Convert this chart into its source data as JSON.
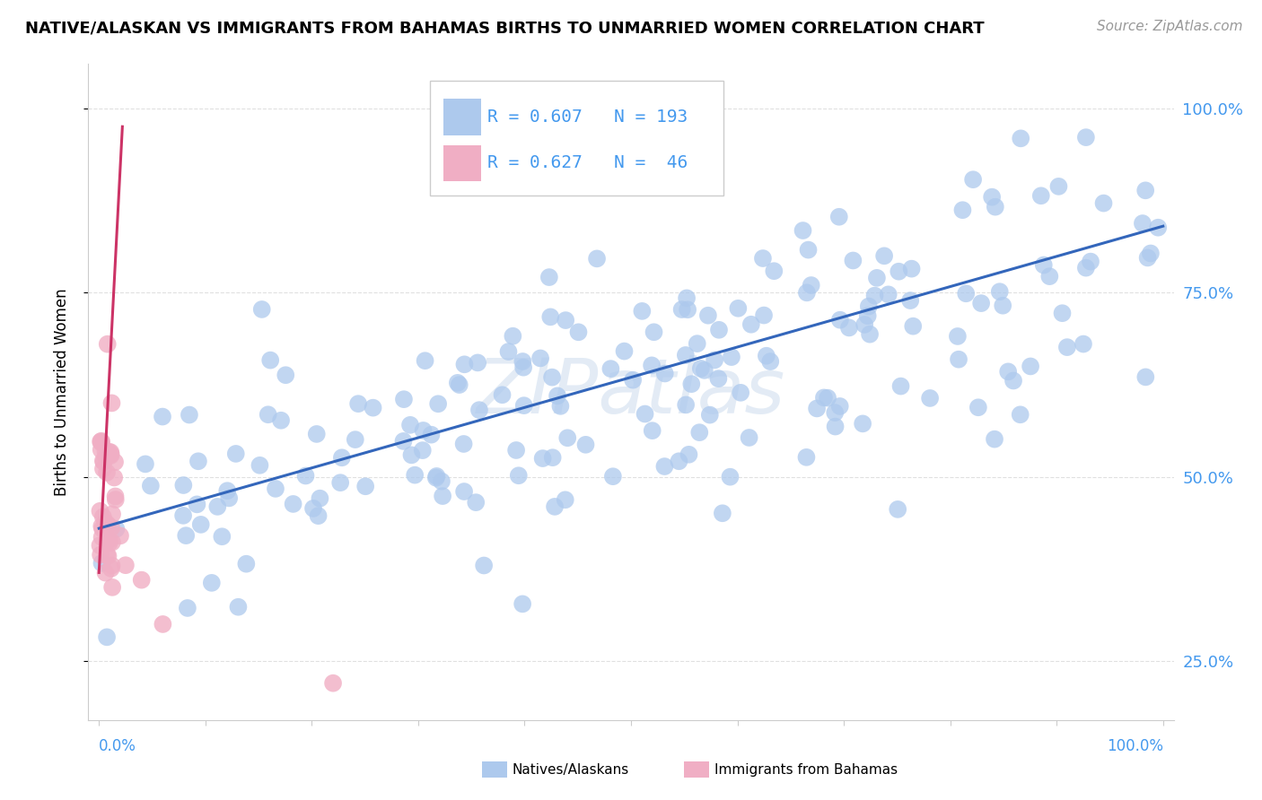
{
  "title": "NATIVE/ALASKAN VS IMMIGRANTS FROM BAHAMAS BIRTHS TO UNMARRIED WOMEN CORRELATION CHART",
  "source": "Source: ZipAtlas.com",
  "ylabel": "Births to Unmarried Women",
  "blue_R": 0.607,
  "blue_N": 193,
  "pink_R": 0.627,
  "pink_N": 46,
  "blue_color": "#adc9ed",
  "blue_edge_color": "#adc9ed",
  "pink_color": "#f0aec4",
  "pink_edge_color": "#f0aec4",
  "blue_line_color": "#3366bb",
  "pink_line_color": "#cc3366",
  "legend_blue_label": "Natives/Alaskans",
  "legend_pink_label": "Immigrants from Bahamas",
  "watermark": "ZIPatlas",
  "tick_color": "#4499ee",
  "grid_color": "#e0e0e0",
  "axis_color": "#cccccc",
  "ymin": 0.17,
  "ymax": 1.06,
  "xmin": -0.01,
  "xmax": 1.01,
  "blue_line_x0": 0.0,
  "blue_line_y0": 0.43,
  "blue_line_x1": 1.0,
  "blue_line_y1": 0.84,
  "pink_line_x0": 0.0,
  "pink_line_y0": 0.37,
  "pink_line_x1": 0.022,
  "pink_line_y1": 0.975
}
